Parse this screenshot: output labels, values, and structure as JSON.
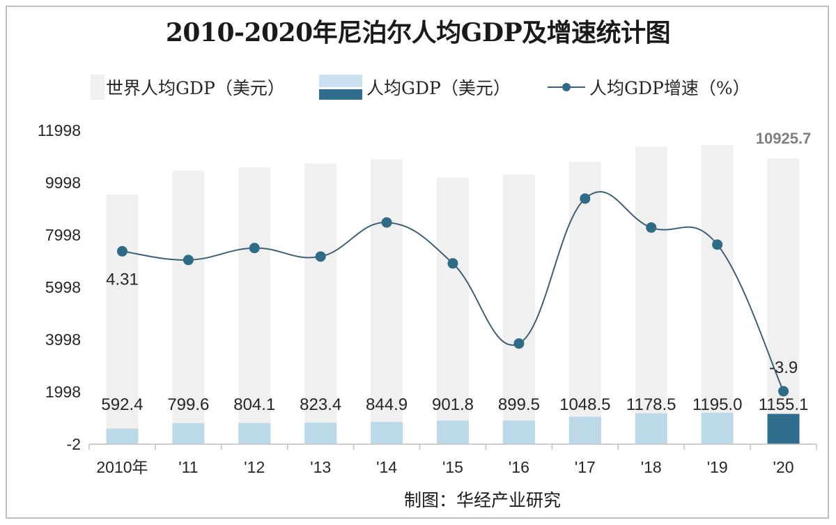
{
  "title": "2010-2020年尼泊尔人均GDP及增速统计图",
  "legend": {
    "world": "世界人均GDP（美元）",
    "gdp": "人均GDP（美元）",
    "growth": "人均GDP增速（%）"
  },
  "source": "制图：华经产业研究",
  "colors": {
    "world_bar": "#f0f0f0",
    "gdp_bar": "#bcd9ea",
    "gdp_bar_highlight": "#2e6d8e",
    "line": "#3d5f73",
    "marker": "#2e6b86"
  },
  "chart_data": {
    "type": "bar",
    "categories": [
      "2010年",
      "'11",
      "'12",
      "'13",
      "'14",
      "'15",
      "'16",
      "'17",
      "'18",
      "'19",
      "'20"
    ],
    "y_ticks": [
      "11998",
      "9998",
      "7998",
      "5998",
      "3998",
      "1998",
      "-2"
    ],
    "ylim": [
      -2,
      11998
    ],
    "series": [
      {
        "name": "世界人均GDP（美元）",
        "type": "bar",
        "values": [
          9550,
          10460,
          10580,
          10730,
          10890,
          10190,
          10310,
          10800,
          11370,
          11440,
          10925.7
        ]
      },
      {
        "name": "人均GDP（美元）",
        "type": "bar",
        "values": [
          592.4,
          799.6,
          804.1,
          823.4,
          844.9,
          901.8,
          899.5,
          1048.5,
          1178.5,
          1195.0,
          1155.1
        ],
        "labels": [
          "592.4",
          "799.6",
          "804.1",
          "823.4",
          "844.9",
          "901.8",
          "899.5",
          "1048.5",
          "1178.5",
          "1195.0",
          "1155.1"
        ]
      },
      {
        "name": "人均GDP增速（%）",
        "type": "line",
        "values": [
          4.31,
          3.8,
          4.5,
          4.0,
          6.0,
          3.6,
          -1.1,
          7.4,
          5.7,
          4.7,
          -3.9
        ]
      }
    ],
    "annotations": {
      "world_last": "10925.7",
      "growth_first": "4.31",
      "growth_last": "-3.9"
    },
    "secondary_axis_range": [
      -7,
      11.4
    ]
  }
}
